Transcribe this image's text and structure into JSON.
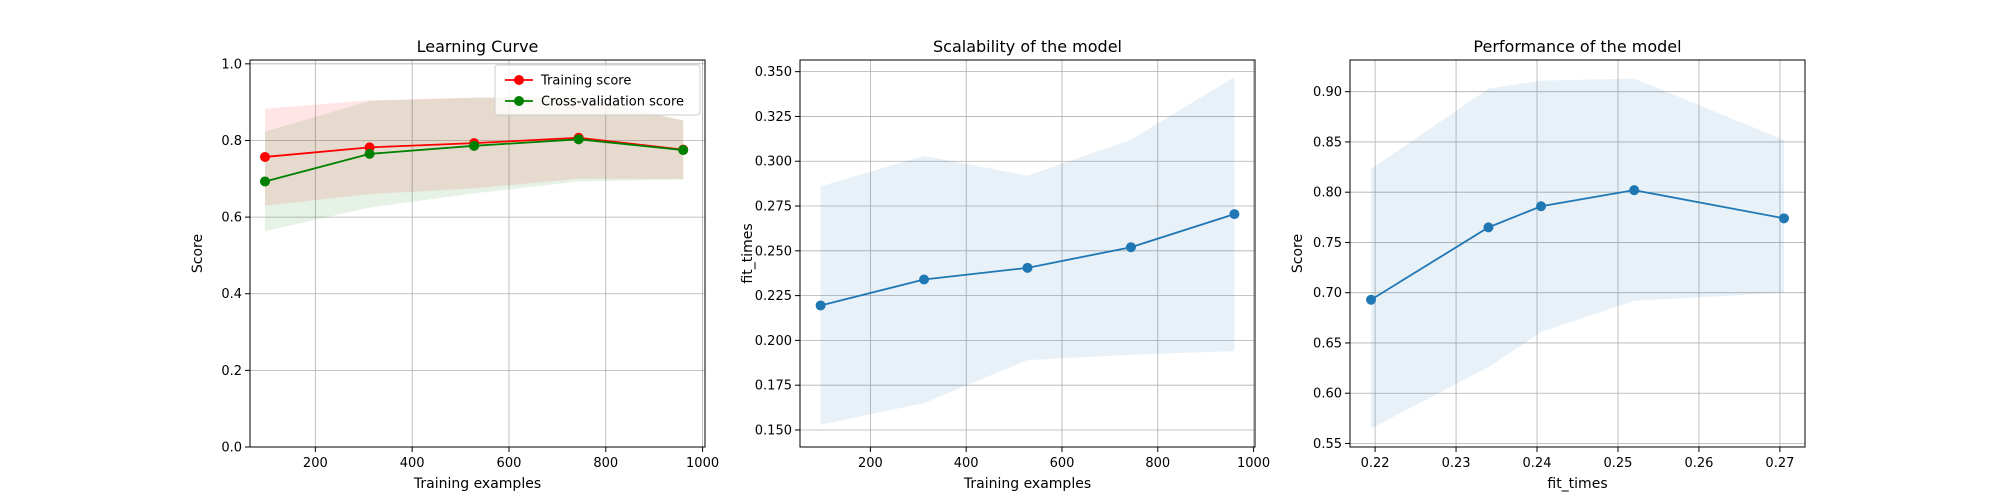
{
  "chart_data": [
    {
      "type": "line",
      "title": "Learning Curve",
      "xlabel": "Training examples",
      "ylabel": "Score",
      "xlim": [
        65,
        1005
      ],
      "ylim": [
        0.0,
        1.01
      ],
      "xticks": [
        200,
        400,
        600,
        800,
        1000
      ],
      "xtick_labels": [
        "200",
        "400",
        "600",
        "800",
        "1000"
      ],
      "yticks": [
        0.0,
        0.2,
        0.4,
        0.6,
        0.8,
        1.0
      ],
      "ytick_labels": [
        "0.0",
        "0.2",
        "0.4",
        "0.6",
        "0.8",
        "1.0"
      ],
      "grid": true,
      "legend": "upper right",
      "x": [
        96,
        312,
        528,
        744,
        960
      ],
      "series": [
        {
          "name": "Training score",
          "color": "#ff0000",
          "band_color": "#ff0000",
          "values": [
            0.757,
            0.782,
            0.793,
            0.807,
            0.776
          ],
          "band_low": [
            0.63,
            0.66,
            0.675,
            0.7,
            0.7
          ],
          "band_high": [
            0.883,
            0.905,
            0.912,
            0.913,
            0.852
          ]
        },
        {
          "name": "Cross-validation score",
          "color": "#008000",
          "band_color": "#008000",
          "values": [
            0.693,
            0.765,
            0.786,
            0.803,
            0.775
          ],
          "band_low": [
            0.563,
            0.625,
            0.662,
            0.693,
            0.698
          ],
          "band_high": [
            0.823,
            0.903,
            0.911,
            0.913,
            0.852
          ]
        }
      ]
    },
    {
      "type": "line",
      "title": "Scalability of the model",
      "xlabel": "Training examples",
      "ylabel": "fit_times",
      "xlim": [
        53,
        1003
      ],
      "ylim": [
        0.1405,
        0.3565
      ],
      "xticks": [
        200,
        400,
        600,
        800,
        1000
      ],
      "xtick_labels": [
        "200",
        "400",
        "600",
        "800",
        "1000"
      ],
      "yticks": [
        0.15,
        0.175,
        0.2,
        0.225,
        0.25,
        0.275,
        0.3,
        0.325,
        0.35
      ],
      "ytick_labels": [
        "0.150",
        "0.175",
        "0.200",
        "0.225",
        "0.250",
        "0.275",
        "0.300",
        "0.325",
        "0.350"
      ],
      "grid": true,
      "x": [
        96,
        312,
        528,
        744,
        960
      ],
      "series": [
        {
          "color": "#1f77b4",
          "band_color": "#1f77b4",
          "values": [
            0.2195,
            0.234,
            0.2405,
            0.252,
            0.2705
          ],
          "band_low": [
            0.153,
            0.165,
            0.189,
            0.192,
            0.194
          ],
          "band_high": [
            0.286,
            0.303,
            0.292,
            0.312,
            0.347
          ]
        }
      ]
    },
    {
      "type": "line",
      "title": "Performance of the model",
      "xlabel": "fit_times",
      "ylabel": "Score",
      "xlim": [
        0.2169,
        0.2731
      ],
      "ylim": [
        0.5465,
        0.9315
      ],
      "xticks": [
        0.22,
        0.23,
        0.24,
        0.25,
        0.26,
        0.27
      ],
      "xtick_labels": [
        "0.22",
        "0.23",
        "0.24",
        "0.25",
        "0.26",
        "0.27"
      ],
      "yticks": [
        0.55,
        0.6,
        0.65,
        0.7,
        0.75,
        0.8,
        0.85,
        0.9
      ],
      "ytick_labels": [
        "0.55",
        "0.60",
        "0.65",
        "0.70",
        "0.75",
        "0.80",
        "0.85",
        "0.90"
      ],
      "grid": true,
      "x": [
        0.2195,
        0.234,
        0.2405,
        0.252,
        0.2705
      ],
      "series": [
        {
          "color": "#1f77b4",
          "band_color": "#1f77b4",
          "values": [
            0.693,
            0.765,
            0.786,
            0.802,
            0.774
          ],
          "band_low": [
            0.565,
            0.626,
            0.661,
            0.692,
            0.7
          ],
          "band_high": [
            0.823,
            0.903,
            0.911,
            0.913,
            0.852
          ]
        }
      ]
    }
  ]
}
